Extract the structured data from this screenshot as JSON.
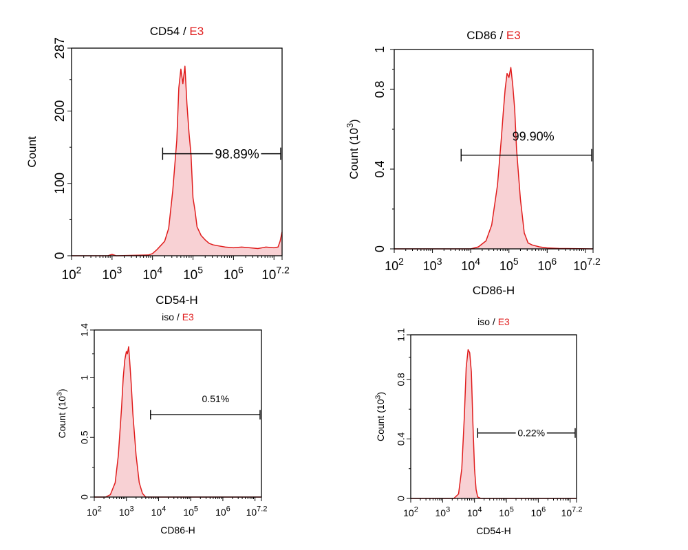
{
  "colors": {
    "histogram": "#e01c1c",
    "histogram_fill": "#f7c9cc",
    "sample_label": "#e01c1c"
  },
  "chart_data": [
    {
      "type": "area",
      "title_marker": "CD54",
      "title_separator": " / ",
      "title_sample": "E3",
      "xlabel": "CD54-H",
      "ylabel": "Count",
      "x_scale": "log",
      "xlim": [
        2,
        7.2
      ],
      "x_ticks": [
        {
          "base": "10",
          "exp": "2",
          "v": 2
        },
        {
          "base": "10",
          "exp": "3",
          "v": 3
        },
        {
          "base": "10",
          "exp": "4",
          "v": 4
        },
        {
          "base": "10",
          "exp": "5",
          "v": 5
        },
        {
          "base": "10",
          "exp": "6",
          "v": 6
        },
        {
          "base": "10",
          "exp": "7.2",
          "v": 7.2
        }
      ],
      "ylim": [
        0,
        287
      ],
      "y_ticks": [
        {
          "label": "0",
          "v": 0
        },
        {
          "label": "100",
          "v": 100
        },
        {
          "label": "200",
          "v": 200
        },
        {
          "label": "287",
          "v": 287
        }
      ],
      "series": [
        {
          "x": [
            2.0,
            2.9,
            3.0,
            3.05,
            3.1,
            3.9,
            4.0,
            4.1,
            4.2,
            4.3,
            4.4,
            4.5,
            4.6,
            4.65,
            4.7,
            4.75,
            4.8,
            4.85,
            4.9,
            4.95,
            5.0,
            5.05,
            5.1,
            5.2,
            5.3,
            5.4,
            5.5,
            5.6,
            5.8,
            6.0,
            6.2,
            6.4,
            6.6,
            6.8,
            7.0,
            7.1,
            7.15,
            7.2
          ],
          "y": [
            0,
            0,
            2,
            1,
            0,
            1,
            3,
            8,
            14,
            20,
            38,
            90,
            160,
            232,
            258,
            238,
            262,
            210,
            170,
            140,
            80,
            62,
            40,
            28,
            22,
            17,
            15,
            14,
            12,
            11,
            12,
            11,
            10,
            12,
            11,
            12,
            20,
            33
          ]
        }
      ],
      "gate": {
        "label": "98.89%",
        "x_start": 4.25,
        "x_end": 7.2,
        "y": 141
      }
    },
    {
      "type": "area",
      "title_marker": "CD86",
      "title_separator": " / ",
      "title_sample": "E3",
      "xlabel": "CD86-H",
      "ylabel": "Count (10^3)",
      "ylabel_text": "Count",
      "ylabel_base": "(10",
      "ylabel_exp": "3",
      "ylabel_close": ")",
      "x_scale": "log",
      "xlim": [
        2,
        7.2
      ],
      "x_ticks": [
        {
          "base": "10",
          "exp": "2",
          "v": 2
        },
        {
          "base": "10",
          "exp": "3",
          "v": 3
        },
        {
          "base": "10",
          "exp": "4",
          "v": 4
        },
        {
          "base": "10",
          "exp": "5",
          "v": 5
        },
        {
          "base": "10",
          "exp": "6",
          "v": 6
        },
        {
          "base": "10",
          "exp": "7.2",
          "v": 7.2
        }
      ],
      "ylim": [
        0,
        1
      ],
      "y_ticks": [
        {
          "label": "0",
          "v": 0
        },
        {
          "label": "0.4",
          "v": 0.4
        },
        {
          "label": "0.8",
          "v": 0.8
        },
        {
          "label": "1",
          "v": 1
        }
      ],
      "series": [
        {
          "x": [
            2.0,
            4.0,
            4.2,
            4.4,
            4.55,
            4.7,
            4.8,
            4.85,
            4.9,
            4.95,
            5.0,
            5.05,
            5.1,
            5.15,
            5.2,
            5.3,
            5.4,
            5.5,
            5.6,
            5.8,
            6.0,
            6.3,
            7.2
          ],
          "y": [
            0,
            0,
            0.01,
            0.04,
            0.12,
            0.32,
            0.55,
            0.68,
            0.8,
            0.88,
            0.86,
            0.91,
            0.82,
            0.7,
            0.5,
            0.25,
            0.08,
            0.03,
            0.02,
            0.01,
            0.005,
            0.002,
            0
          ]
        }
      ],
      "gate": {
        "label": "99.90%",
        "x_start": 3.75,
        "x_end": 7.2,
        "y": 0.47
      }
    },
    {
      "type": "area",
      "title_marker": "iso",
      "title_separator": " / ",
      "title_sample": "E3",
      "xlabel": "CD86-H",
      "ylabel": "Count (10^3)",
      "ylabel_text": "Count",
      "ylabel_base": "(10",
      "ylabel_exp": "3",
      "ylabel_close": ")",
      "x_scale": "log",
      "xlim": [
        2,
        7.2
      ],
      "x_ticks": [
        {
          "base": "10",
          "exp": "2",
          "v": 2
        },
        {
          "base": "10",
          "exp": "3",
          "v": 3
        },
        {
          "base": "10",
          "exp": "4",
          "v": 4
        },
        {
          "base": "10",
          "exp": "5",
          "v": 5
        },
        {
          "base": "10",
          "exp": "6",
          "v": 6
        },
        {
          "base": "10",
          "exp": "7.2",
          "v": 7.2
        }
      ],
      "ylim": [
        0,
        1.4
      ],
      "y_ticks": [
        {
          "label": "0",
          "v": 0
        },
        {
          "label": "0.5",
          "v": 0.5
        },
        {
          "label": "1",
          "v": 1
        },
        {
          "label": "1.4",
          "v": 1.4
        }
      ],
      "series": [
        {
          "x": [
            2.0,
            2.35,
            2.5,
            2.65,
            2.75,
            2.85,
            2.9,
            2.95,
            3.0,
            3.03,
            3.07,
            3.1,
            3.15,
            3.2,
            3.3,
            3.4,
            3.5,
            3.6,
            7.2
          ],
          "y": [
            0,
            0,
            0.02,
            0.12,
            0.35,
            0.75,
            1.0,
            1.15,
            1.22,
            1.2,
            1.26,
            1.15,
            0.95,
            0.7,
            0.35,
            0.12,
            0.03,
            0,
            0
          ]
        }
      ],
      "gate": {
        "label": "0.51%",
        "x_start": 3.75,
        "x_end": 7.2,
        "y": 0.69
      }
    },
    {
      "type": "area",
      "title_marker": "iso",
      "title_separator": " / ",
      "title_sample": "E3",
      "xlabel": "CD54-H",
      "ylabel": "Count (10^3)",
      "ylabel_text": "Count",
      "ylabel_base": "(10",
      "ylabel_exp": "3",
      "ylabel_close": ")",
      "x_scale": "log",
      "xlim": [
        2,
        7.2
      ],
      "x_ticks": [
        {
          "base": "10",
          "exp": "2",
          "v": 2
        },
        {
          "base": "10",
          "exp": "3",
          "v": 3
        },
        {
          "base": "10",
          "exp": "4",
          "v": 4
        },
        {
          "base": "10",
          "exp": "5",
          "v": 5
        },
        {
          "base": "10",
          "exp": "6",
          "v": 6
        },
        {
          "base": "10",
          "exp": "7.2",
          "v": 7.2
        }
      ],
      "ylim": [
        0,
        1.1
      ],
      "y_ticks": [
        {
          "label": "0",
          "v": 0
        },
        {
          "label": "0.4",
          "v": 0.4
        },
        {
          "label": "0.8",
          "v": 0.8
        },
        {
          "label": "1.1",
          "v": 1.1
        }
      ],
      "series": [
        {
          "x": [
            2.0,
            3.35,
            3.5,
            3.6,
            3.68,
            3.74,
            3.8,
            3.85,
            3.9,
            3.95,
            4.0,
            4.05,
            4.1,
            4.2,
            7.2
          ],
          "y": [
            0,
            0,
            0.03,
            0.2,
            0.55,
            0.88,
            1.0,
            0.98,
            0.85,
            0.5,
            0.2,
            0.06,
            0.01,
            0,
            0
          ]
        }
      ],
      "gate": {
        "label": "0.22%",
        "x_start": 4.1,
        "x_end": 7.2,
        "y": 0.44
      }
    }
  ]
}
